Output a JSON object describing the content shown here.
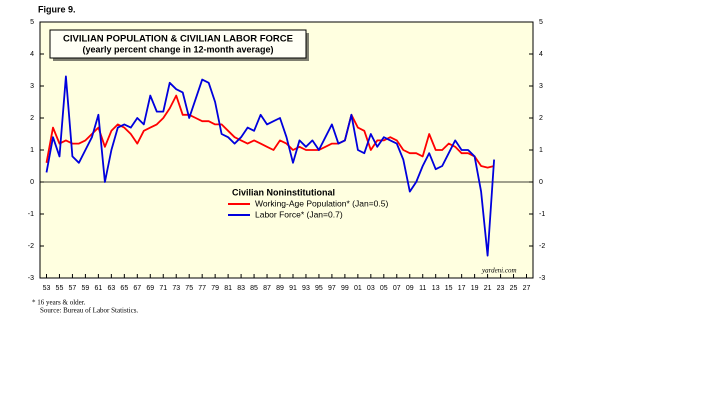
{
  "figure": "Figure 9.",
  "footnotes": [
    "*   16 years & older.",
    "Source: Bureau of Labor Statistics."
  ],
  "chart_data": {
    "type": "line",
    "title": "CIVILIAN POPULATION & CIVILIAN LABOR FORCE",
    "subtitle": "(yearly percent change in 12-month average)",
    "legend_title": "Civilian Noninstitutional",
    "annotation": "yardeni.com",
    "x": [
      1953,
      1954,
      1955,
      1956,
      1957,
      1958,
      1959,
      1960,
      1961,
      1962,
      1963,
      1964,
      1965,
      1966,
      1967,
      1968,
      1969,
      1970,
      1971,
      1972,
      1973,
      1974,
      1975,
      1976,
      1977,
      1978,
      1979,
      1980,
      1981,
      1982,
      1983,
      1984,
      1985,
      1986,
      1987,
      1988,
      1989,
      1990,
      1991,
      1992,
      1993,
      1994,
      1995,
      1996,
      1997,
      1998,
      1999,
      2000,
      2001,
      2002,
      2003,
      2004,
      2005,
      2006,
      2007,
      2008,
      2009,
      2010,
      2011,
      2012,
      2013,
      2014,
      2015,
      2016,
      2017,
      2018,
      2019,
      2020,
      2021,
      2022
    ],
    "series": [
      {
        "name": "Working-Age Population* (Jan=0.5)",
        "color": "#ff0000",
        "values": [
          0.6,
          1.7,
          1.2,
          1.3,
          1.2,
          1.2,
          1.3,
          1.5,
          1.7,
          1.1,
          1.6,
          1.8,
          1.7,
          1.5,
          1.2,
          1.6,
          1.7,
          1.8,
          2.0,
          2.3,
          2.7,
          2.1,
          2.1,
          2.0,
          1.9,
          1.9,
          1.8,
          1.8,
          1.6,
          1.4,
          1.3,
          1.2,
          1.3,
          1.2,
          1.1,
          1.0,
          1.3,
          1.2,
          1.0,
          1.1,
          1.0,
          1.0,
          1.0,
          1.1,
          1.2,
          1.2,
          1.3,
          2.1,
          1.7,
          1.6,
          1.0,
          1.3,
          1.3,
          1.4,
          1.3,
          1.0,
          0.9,
          0.9,
          0.8,
          1.5,
          1.0,
          1.0,
          1.2,
          1.1,
          0.9,
          0.9,
          0.8,
          0.5,
          0.45,
          0.5
        ]
      },
      {
        "name": "Labor Force* (Jan=0.7)",
        "color": "#0000dd",
        "values": [
          0.3,
          1.4,
          0.8,
          3.3,
          0.8,
          0.6,
          1.0,
          1.4,
          2.1,
          0.0,
          1.0,
          1.7,
          1.8,
          1.7,
          2.0,
          1.8,
          2.7,
          2.2,
          2.2,
          3.1,
          2.9,
          2.8,
          2.0,
          2.6,
          3.2,
          3.1,
          2.5,
          1.5,
          1.4,
          1.2,
          1.4,
          1.7,
          1.6,
          2.1,
          1.8,
          1.9,
          2.0,
          1.4,
          0.6,
          1.3,
          1.1,
          1.3,
          1.0,
          1.4,
          1.8,
          1.2,
          1.3,
          2.1,
          1.0,
          0.9,
          1.5,
          1.1,
          1.4,
          1.3,
          1.2,
          0.7,
          -0.3,
          0.0,
          0.5,
          0.9,
          0.4,
          0.5,
          0.9,
          1.3,
          1.0,
          1.0,
          0.8,
          -0.3,
          -2.3,
          0.7
        ]
      }
    ],
    "xlim": [
      1952,
      2028
    ],
    "xticks": [
      {
        "value": 1953,
        "label": "53"
      },
      {
        "value": 1955,
        "label": "55"
      },
      {
        "value": 1957,
        "label": "57"
      },
      {
        "value": 1959,
        "label": "59"
      },
      {
        "value": 1961,
        "label": "61"
      },
      {
        "value": 1963,
        "label": "63"
      },
      {
        "value": 1965,
        "label": "65"
      },
      {
        "value": 1967,
        "label": "67"
      },
      {
        "value": 1969,
        "label": "69"
      },
      {
        "value": 1971,
        "label": "71"
      },
      {
        "value": 1973,
        "label": "73"
      },
      {
        "value": 1975,
        "label": "75"
      },
      {
        "value": 1977,
        "label": "77"
      },
      {
        "value": 1979,
        "label": "79"
      },
      {
        "value": 1981,
        "label": "81"
      },
      {
        "value": 1983,
        "label": "83"
      },
      {
        "value": 1985,
        "label": "85"
      },
      {
        "value": 1987,
        "label": "87"
      },
      {
        "value": 1989,
        "label": "89"
      },
      {
        "value": 1991,
        "label": "91"
      },
      {
        "value": 1993,
        "label": "93"
      },
      {
        "value": 1995,
        "label": "95"
      },
      {
        "value": 1997,
        "label": "97"
      },
      {
        "value": 1999,
        "label": "99"
      },
      {
        "value": 2001,
        "label": "01"
      },
      {
        "value": 2003,
        "label": "03"
      },
      {
        "value": 2005,
        "label": "05"
      },
      {
        "value": 2007,
        "label": "07"
      },
      {
        "value": 2009,
        "label": "09"
      },
      {
        "value": 2011,
        "label": "11"
      },
      {
        "value": 2013,
        "label": "13"
      },
      {
        "value": 2015,
        "label": "15"
      },
      {
        "value": 2017,
        "label": "17"
      },
      {
        "value": 2019,
        "label": "19"
      },
      {
        "value": 2021,
        "label": "21"
      },
      {
        "value": 2023,
        "label": "23"
      },
      {
        "value": 2025,
        "label": "25"
      },
      {
        "value": 2027,
        "label": "27"
      }
    ],
    "ylim": [
      -3,
      5
    ],
    "yticks": [
      -3,
      -2,
      -1,
      0,
      1,
      2,
      3,
      4,
      5
    ]
  }
}
